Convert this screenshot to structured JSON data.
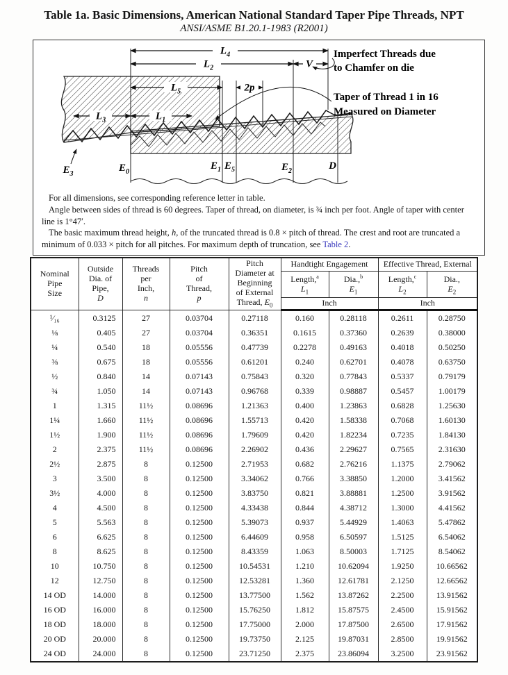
{
  "page": {
    "title": "Table 1a.  Basic Dimensions, American National Standard Taper Pipe Threads, NPT",
    "subtitle": "ANSI/ASME B1.20.1-1983 (R2001)"
  },
  "figure": {
    "dims": {
      "L4": {
        "sym": "L",
        "sub": "4"
      },
      "L2": {
        "sym": "L",
        "sub": "2"
      },
      "V": {
        "sym": "V",
        "sub": ""
      },
      "L5": {
        "sym": "L",
        "sub": "5"
      },
      "p2": {
        "sym": "2p",
        "sub": ""
      },
      "L3": {
        "sym": "L",
        "sub": "3"
      },
      "L1": {
        "sym": "L",
        "sub": "1"
      }
    },
    "refs": {
      "E3": {
        "sym": "E",
        "sub": "3"
      },
      "E0": {
        "sym": "E",
        "sub": "0"
      },
      "E1": {
        "sym": "E",
        "sub": "1"
      },
      "E5": {
        "sym": "E",
        "sub": "5"
      },
      "E2": {
        "sym": "E",
        "sub": "2"
      },
      "D": {
        "sym": "D",
        "sub": ""
      }
    },
    "chamfer_note": [
      "Imperfect Threads due",
      "to Chamfer on die"
    ],
    "taper_note": [
      "Taper of Thread 1 in 16",
      "Measured on Diameter"
    ]
  },
  "notes": {
    "n1": "For all dimensions, see corresponding reference letter in table.",
    "n2a": "Angle between sides of thread is 60 degrees. Taper of thread, on diameter, is ",
    "n2frac": "¾",
    "n2b": " inch per foot. Angle of taper with center line is 1°47′.",
    "n3a": "The basic maximum thread height, ",
    "n3h": "h",
    "n3b": ", of the truncated thread is 0.8 × pitch of thread. The crest and root are truncated a minimum of 0.033 × pitch for all pitches. For maximum depth of truncation, see ",
    "n3link": "Table 2",
    "n3c": "."
  },
  "table": {
    "col_keys": [
      "nominal-size",
      "outside-dia",
      "threads-per-inch",
      "pitch",
      "pitch-dia-e0",
      "length-l1",
      "dia-e1",
      "length-l2",
      "dia-e2"
    ],
    "headers": {
      "nominal": "Nominal\nPipe\nSize",
      "outside": {
        "lines": "Outside\nDia. of\nPipe,",
        "sym": "D"
      },
      "threads": {
        "lines": "Threads\nper\nInch,",
        "sym": "n"
      },
      "pitch": {
        "lines": "Pitch\nof\nThread,",
        "sym": "p"
      },
      "pitch_dia": {
        "lines": "Pitch\nDiameter at\nBeginning\nof External",
        "tail": "Thread, ",
        "sym": "E",
        "sub": "0"
      },
      "group_handtight": "Handtight Engagement",
      "group_effective": "Effective Thread, External",
      "len1": {
        "label": "Length,",
        "sup": "a",
        "sym": "L",
        "sub": "1"
      },
      "dia1": {
        "label": "Dia.,",
        "sup": "b",
        "sym": "E",
        "sub": "1"
      },
      "len2": {
        "label": "Length,",
        "sup": "c",
        "sym": "L",
        "sub": "2"
      },
      "dia2": {
        "label": "Dia.,",
        "sup": "",
        "sym": "E",
        "sub": "2"
      },
      "inch": "Inch"
    },
    "rows": [
      [
        "¹⁄₁₆",
        "0.3125",
        "27",
        "0.03704",
        "0.27118",
        "0.160",
        "0.28118",
        "0.2611",
        "0.28750"
      ],
      [
        "⅛",
        "0.405",
        "27",
        "0.03704",
        "0.36351",
        "0.1615",
        "0.37360",
        "0.2639",
        "0.38000"
      ],
      [
        "¼",
        "0.540",
        "18",
        "0.05556",
        "0.47739",
        "0.2278",
        "0.49163",
        "0.4018",
        "0.50250"
      ],
      [
        "⅜",
        "0.675",
        "18",
        "0.05556",
        "0.61201",
        "0.240",
        "0.62701",
        "0.4078",
        "0.63750"
      ],
      [
        "½",
        "0.840",
        "14",
        "0.07143",
        "0.75843",
        "0.320",
        "0.77843",
        "0.5337",
        "0.79179"
      ],
      [
        "¾",
        "1.050",
        "14",
        "0.07143",
        "0.96768",
        "0.339",
        "0.98887",
        "0.5457",
        "1.00179"
      ],
      [
        "1",
        "1.315",
        "11½",
        "0.08696",
        "1.21363",
        "0.400",
        "1.23863",
        "0.6828",
        "1.25630"
      ],
      [
        "1¼",
        "1.660",
        "11½",
        "0.08696",
        "1.55713",
        "0.420",
        "1.58338",
        "0.7068",
        "1.60130"
      ],
      [
        "1½",
        "1.900",
        "11½",
        "0.08696",
        "1.79609",
        "0.420",
        "1.82234",
        "0.7235",
        "1.84130"
      ],
      [
        "2",
        "2.375",
        "11½",
        "0.08696",
        "2.26902",
        "0.436",
        "2.29627",
        "0.7565",
        "2.31630"
      ],
      [
        "2½",
        "2.875",
        "8",
        "0.12500",
        "2.71953",
        "0.682",
        "2.76216",
        "1.1375",
        "2.79062"
      ],
      [
        "3",
        "3.500",
        "8",
        "0.12500",
        "3.34062",
        "0.766",
        "3.38850",
        "1.2000",
        "3.41562"
      ],
      [
        "3½",
        "4.000",
        "8",
        "0.12500",
        "3.83750",
        "0.821",
        "3.88881",
        "1.2500",
        "3.91562"
      ],
      [
        "4",
        "4.500",
        "8",
        "0.12500",
        "4.33438",
        "0.844",
        "4.38712",
        "1.3000",
        "4.41562"
      ],
      [
        "5",
        "5.563",
        "8",
        "0.12500",
        "5.39073",
        "0.937",
        "5.44929",
        "1.4063",
        "5.47862"
      ],
      [
        "6",
        "6.625",
        "8",
        "0.12500",
        "6.44609",
        "0.958",
        "6.50597",
        "1.5125",
        "6.54062"
      ],
      [
        "8",
        "8.625",
        "8",
        "0.12500",
        "8.43359",
        "1.063",
        "8.50003",
        "1.7125",
        "8.54062"
      ],
      [
        "10",
        "10.750",
        "8",
        "0.12500",
        "10.54531",
        "1.210",
        "10.62094",
        "1.9250",
        "10.66562"
      ],
      [
        "12",
        "12.750",
        "8",
        "0.12500",
        "12.53281",
        "1.360",
        "12.61781",
        "2.1250",
        "12.66562"
      ],
      [
        "14 OD",
        "14.000",
        "8",
        "0.12500",
        "13.77500",
        "1.562",
        "13.87262",
        "2.2500",
        "13.91562"
      ],
      [
        "16 OD",
        "16.000",
        "8",
        "0.12500",
        "15.76250",
        "1.812",
        "15.87575",
        "2.4500",
        "15.91562"
      ],
      [
        "18 OD",
        "18.000",
        "8",
        "0.12500",
        "17.75000",
        "2.000",
        "17.87500",
        "2.6500",
        "17.91562"
      ],
      [
        "20 OD",
        "20.000",
        "8",
        "0.12500",
        "19.73750",
        "2.125",
        "19.87031",
        "2.8500",
        "19.91562"
      ],
      [
        "24 OD",
        "24.000",
        "8",
        "0.12500",
        "23.71250",
        "2.375",
        "23.86094",
        "3.2500",
        "23.91562"
      ]
    ]
  },
  "colors": {
    "link": "#3a3abd",
    "ink": "#151515"
  }
}
